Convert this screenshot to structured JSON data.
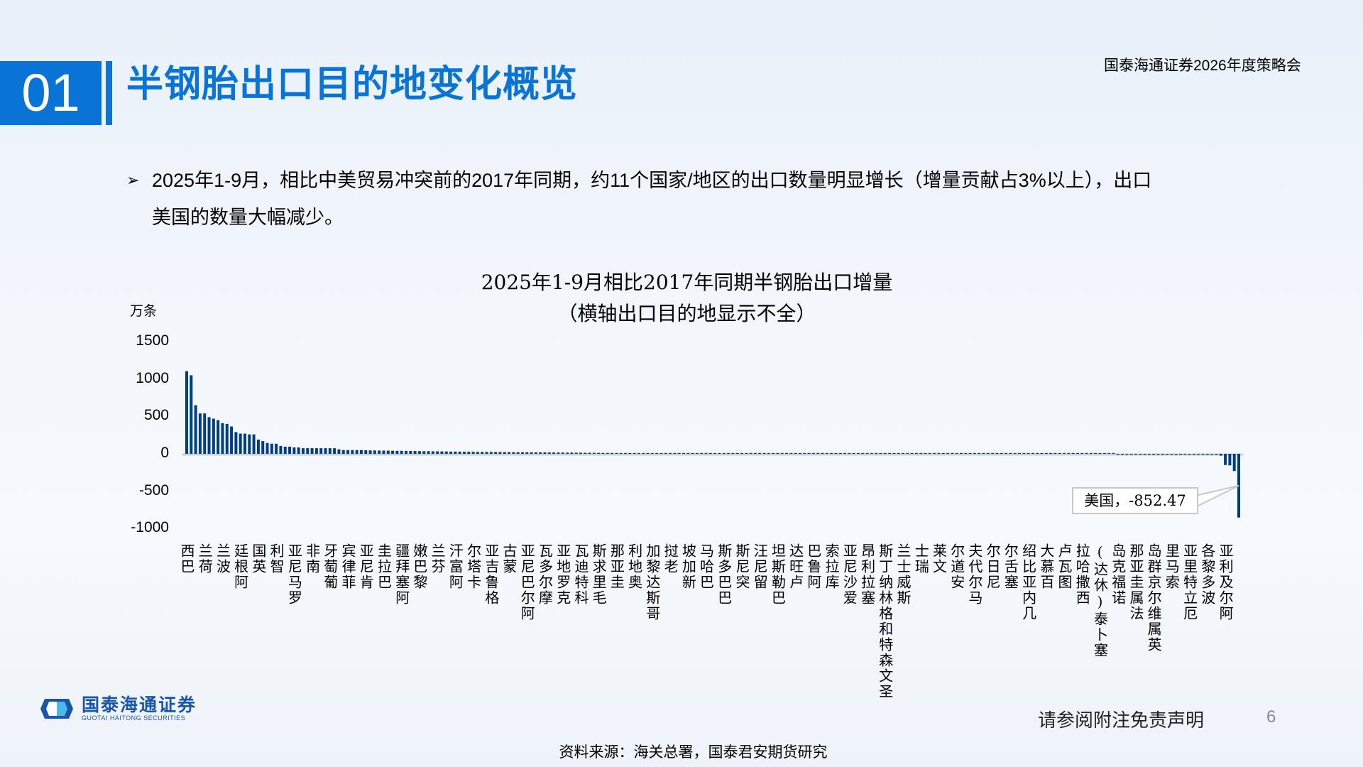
{
  "header": {
    "section_number": "01",
    "title": "半钢胎出口目的地变化概览",
    "conference": "国泰海通证券2026年度策略会"
  },
  "bullet": {
    "text": "2025年1-9月，相比中美贸易冲突前的2017年同期，约11个国家/地区的出口数量明显增长（增量贡献占3%以上），出口美国的数量大幅减少。"
  },
  "footer": {
    "logo_cn": "国泰海通证券",
    "logo_en": "GUOTAI HAITONG SECURITIES",
    "disclaimer": "请参阅附注免责声明",
    "page": "6",
    "source": "资料来源：海关总署，国泰君安期货研究"
  },
  "colors": {
    "accent": "#0a74d6",
    "bar": "#003f7f"
  },
  "chart_data": {
    "type": "bar",
    "title": "2025年1-9月相比2017年同期半钢胎出口增量",
    "subtitle": "（横轴出口目的地显示不全）",
    "ylabel": "万条",
    "ylim": [
      -1000,
      1500
    ],
    "yticks": [
      "1500",
      "1000",
      "500",
      "0",
      "-500",
      "-1000"
    ],
    "grid": false,
    "tick_labels": [
      "巴西",
      "荷兰",
      "波兰",
      "阿根廷",
      "英国",
      "智利",
      "罗马尼亚",
      "南非",
      "葡萄牙",
      "菲律宾",
      "肯尼亚",
      "巴拉圭",
      "阿塞拜疆",
      "黎巴嫩",
      "芬兰",
      "阿富汗",
      "卡塔尔",
      "格鲁吉亚",
      "蒙古",
      "阿尔巴尼亚",
      "摩尔多瓦",
      "克罗地亚",
      "科特迪瓦",
      "毛里求斯",
      "圭亚那",
      "奥地利",
      "哥斯达黎加",
      "老挝",
      "新加坡",
      "巴哈马",
      "巴巴多斯",
      "突尼斯",
      "留尼汪",
      "巴勒斯坦",
      "卢旺达",
      "阿鲁巴",
      "库拉索",
      "爱沙尼亚",
      "塞拉利昂",
      "圣文森特和格林纳丁斯",
      "斯威士兰",
      "瑞士",
      "文莱",
      "安道尔",
      "马尔代夫",
      "尼日尔",
      "塞舌尔",
      "几内亚比绍",
      "百慕大",
      "图瓦卢",
      "西撒哈拉",
      "塞卜泰(休达)",
      "诺福克岛",
      "法属圭亚那",
      "英属维尔京群岛",
      "索马里",
      "厄立特里亚",
      "波多黎各",
      "阿尔及利亚"
    ],
    "values": [
      1105,
      1050,
      650,
      540,
      540,
      490,
      470,
      450,
      410,
      400,
      365,
      290,
      270,
      270,
      260,
      260,
      190,
      170,
      145,
      135,
      135,
      105,
      95,
      95,
      85,
      85,
      75,
      75,
      75,
      75,
      75,
      75,
      75,
      75,
      60,
      50,
      50,
      50,
      50,
      50,
      48,
      46,
      45,
      44,
      43,
      42,
      41,
      40,
      40,
      39,
      38,
      37,
      36,
      35,
      35,
      34,
      33,
      32,
      31,
      30,
      30,
      29,
      28,
      28,
      27,
      26,
      26,
      25,
      25,
      24,
      24,
      23,
      23,
      22,
      22,
      21,
      21,
      20,
      20,
      19,
      19,
      18,
      18,
      17,
      17,
      16,
      16,
      15,
      15,
      14,
      14,
      13,
      13,
      12,
      12,
      12,
      11,
      11,
      11,
      10,
      10,
      10,
      9,
      9,
      9,
      9,
      8,
      8,
      8,
      8,
      7,
      7,
      7,
      7,
      7,
      6,
      6,
      6,
      6,
      6,
      6,
      5,
      5,
      5,
      5,
      5,
      5,
      5,
      4,
      4,
      4,
      4,
      4,
      4,
      4,
      4,
      4,
      3,
      3,
      3,
      3,
      3,
      3,
      3,
      3,
      3,
      3,
      3,
      3,
      2,
      2,
      2,
      2,
      2,
      2,
      2,
      2,
      2,
      2,
      2,
      2,
      2,
      2,
      2,
      2,
      2,
      2,
      1,
      1,
      1,
      1,
      1,
      1,
      1,
      1,
      1,
      1,
      1,
      1,
      1,
      1,
      1,
      1,
      1,
      1,
      1,
      1,
      1,
      1,
      1,
      1,
      1,
      1,
      1,
      1,
      0.5,
      0.5,
      0.5,
      0.5,
      0.5,
      0.5,
      0.5,
      0.5,
      0.5,
      0.3,
      0.3,
      0.3,
      0.3,
      -12,
      -12,
      -12,
      -12,
      -12,
      -12,
      -12,
      -12,
      -12,
      -12,
      -12,
      -12,
      -12,
      -12,
      -12,
      -12,
      -12,
      -12,
      -12,
      -12,
      -12,
      -12,
      -12,
      -25,
      -150,
      -155,
      -230,
      -852.47
    ],
    "annotation": {
      "label": "美国，-852.47",
      "category": "美国",
      "value": -852.47
    }
  }
}
